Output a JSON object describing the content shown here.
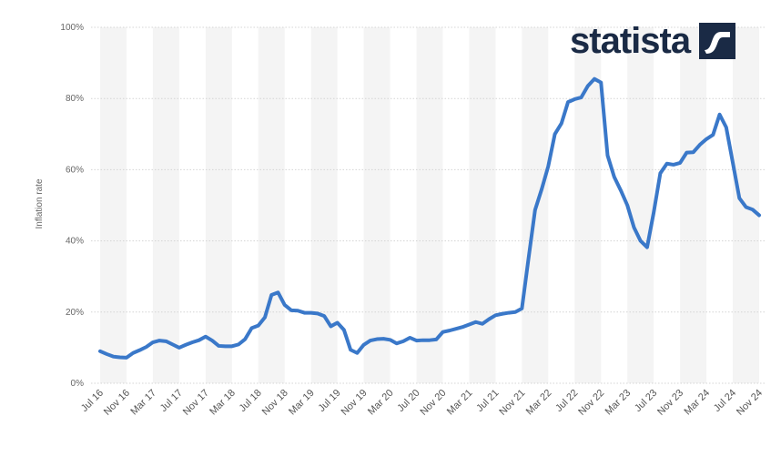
{
  "brand": {
    "name": "statista",
    "color": "#1a2a45"
  },
  "chart_data": {
    "type": "line",
    "ylabel": "Inflation rate",
    "xlabel": "",
    "ylim": [
      0,
      100
    ],
    "y_ticks": [
      "0%",
      "20%",
      "40%",
      "60%",
      "80%",
      "100%"
    ],
    "x_tick_labels": [
      "Jul 16",
      "Nov 16",
      "Mar 17",
      "Jul 17",
      "Nov 17",
      "Mar 18",
      "Jul 18",
      "Nov 18",
      "Mar 19",
      "Jul 19",
      "Nov 19",
      "Mar 20",
      "Jul 20",
      "Nov 20",
      "Mar 21",
      "Jul 21",
      "Nov 21",
      "Mar 22",
      "Jul 22",
      "Nov 22",
      "Mar 23",
      "Jul 23",
      "Nov 23",
      "Mar 24",
      "Jul 24",
      "Nov 24"
    ],
    "grid": true,
    "line_color": "#3a78c9",
    "series": [
      {
        "values": [
          9,
          8.2,
          7.5,
          7.3,
          7.2,
          8.5,
          9.3,
          10.2,
          11.5,
          12,
          11.8,
          10.9,
          10,
          10.8,
          11.5,
          12.1,
          13.1,
          12,
          10.5,
          10.4,
          10.4,
          10.9,
          12.4,
          15.5,
          16.2,
          18.5,
          24.8,
          25.5,
          22,
          20.5,
          20.4,
          19.8,
          19.8,
          19.6,
          18.9,
          16,
          17,
          15,
          9.4,
          8.5,
          10.8,
          12,
          12.4,
          12.5,
          12.2,
          11.2,
          11.8,
          12.8,
          12,
          12.1,
          12.1,
          12.3,
          14.4,
          14.8,
          15.3,
          15.8,
          16.5,
          17.2,
          16.7,
          18,
          19.1,
          19.5,
          19.8,
          20,
          21,
          35,
          48.7,
          54.5,
          61,
          70,
          73,
          79,
          79.8,
          80.3,
          83.5,
          85.5,
          84.5,
          64,
          58,
          54.2,
          50,
          43.8,
          40,
          38.2,
          48,
          59,
          61.7,
          61.4,
          61.9,
          64.8,
          64.9,
          67,
          68.6,
          69.8,
          75.5,
          71.9,
          62,
          52,
          49.5,
          48.8,
          47.2
        ]
      }
    ]
  }
}
